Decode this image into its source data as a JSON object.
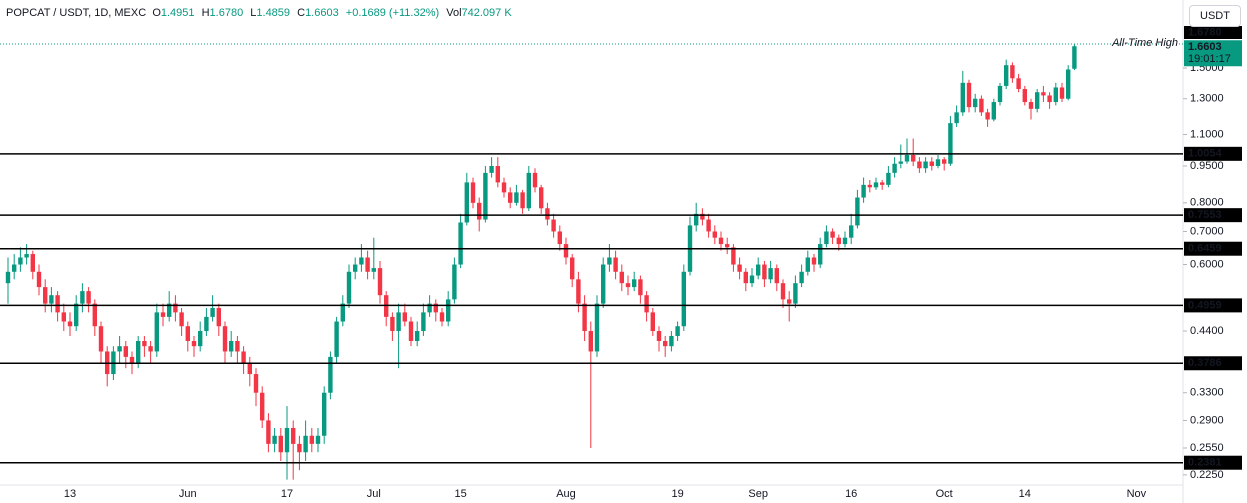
{
  "header": {
    "symbol": "POPCAT / USDT, 1D, MEXC",
    "o_label": "O",
    "o": "1.4951",
    "h_label": "H",
    "h": "1.6780",
    "l_label": "L",
    "l": "1.4859",
    "c_label": "C",
    "c": "1.6603",
    "change": "+0.1689 (+11.32%)",
    "vol_label": "Vol",
    "vol": "742.097 K",
    "currency": "USDT"
  },
  "chart_data": {
    "type": "candlestick",
    "log": true,
    "grid": false,
    "up_color": "#089981",
    "down_color": "#f23645",
    "ylim": [
      0.2146,
      2.06
    ],
    "yticks": [
      {
        "value": 1.5,
        "label": "1.5000"
      },
      {
        "value": 1.3,
        "label": "1.3000"
      },
      {
        "value": 1.1,
        "label": "1.1000"
      },
      {
        "value": 0.95,
        "label": "0.9500"
      },
      {
        "value": 0.8,
        "label": "0.8000"
      },
      {
        "value": 0.7,
        "label": "0.7000"
      },
      {
        "value": 0.6,
        "label": "0.6000"
      },
      {
        "value": 0.44,
        "label": "0.4400"
      },
      {
        "value": 0.33,
        "label": "0.3300"
      },
      {
        "value": 0.29,
        "label": "0.2900"
      },
      {
        "value": 0.255,
        "label": "0.2550"
      },
      {
        "value": 0.225,
        "label": "0.2250"
      }
    ],
    "levels": [
      1.0054,
      0.7553,
      0.6459,
      0.4959,
      0.3786,
      0.2381
    ],
    "ath": {
      "value": 1.678,
      "label": "1.6780"
    },
    "ath_text": "All-Time High",
    "last_price": 1.6603,
    "countdown": "19:01:17",
    "categories": [
      null,
      null,
      null,
      null,
      null,
      null,
      null,
      null,
      null,
      null,
      "13",
      null,
      null,
      null,
      null,
      null,
      null,
      null,
      null,
      null,
      null,
      null,
      null,
      null,
      null,
      null,
      null,
      null,
      null,
      "Jun",
      null,
      null,
      null,
      null,
      null,
      null,
      null,
      null,
      null,
      null,
      null,
      null,
      null,
      null,
      null,
      "17",
      null,
      null,
      null,
      null,
      null,
      null,
      null,
      null,
      null,
      null,
      null,
      null,
      null,
      "Jul",
      null,
      null,
      null,
      null,
      null,
      null,
      null,
      null,
      null,
      null,
      null,
      null,
      null,
      "15",
      null,
      null,
      null,
      null,
      null,
      null,
      null,
      null,
      null,
      null,
      null,
      null,
      null,
      null,
      null,
      null,
      "Aug",
      null,
      null,
      null,
      null,
      null,
      null,
      null,
      null,
      null,
      null,
      null,
      null,
      null,
      null,
      null,
      null,
      null,
      "19",
      null,
      null,
      null,
      null,
      null,
      null,
      null,
      null,
      null,
      null,
      null,
      null,
      "Sep",
      null,
      null,
      null,
      null,
      null,
      null,
      null,
      null,
      null,
      null,
      null,
      null,
      null,
      null,
      "16",
      null,
      null,
      null,
      null,
      null,
      null,
      null,
      null,
      null,
      null,
      null,
      null,
      null,
      null,
      "Oct",
      null,
      null,
      null,
      null,
      null,
      null,
      null,
      null,
      null,
      null,
      null,
      null,
      "14",
      null,
      null,
      null,
      null,
      null,
      null,
      null,
      null,
      null,
      null,
      null,
      null,
      null,
      null,
      null,
      null,
      null,
      "Nov"
    ],
    "ohlc": [
      [
        0.55,
        0.62,
        0.5,
        0.58
      ],
      [
        0.58,
        0.63,
        0.56,
        0.6
      ],
      [
        0.6,
        0.65,
        0.58,
        0.62
      ],
      [
        0.62,
        0.66,
        0.6,
        0.63
      ],
      [
        0.63,
        0.64,
        0.56,
        0.58
      ],
      [
        0.58,
        0.6,
        0.52,
        0.54
      ],
      [
        0.54,
        0.56,
        0.48,
        0.5
      ],
      [
        0.5,
        0.54,
        0.48,
        0.52
      ],
      [
        0.52,
        0.53,
        0.46,
        0.48
      ],
      [
        0.48,
        0.5,
        0.44,
        0.46
      ],
      [
        0.46,
        0.48,
        0.43,
        0.45
      ],
      [
        0.45,
        0.52,
        0.44,
        0.5
      ],
      [
        0.5,
        0.55,
        0.48,
        0.53
      ],
      [
        0.53,
        0.54,
        0.48,
        0.5
      ],
      [
        0.5,
        0.51,
        0.43,
        0.45
      ],
      [
        0.45,
        0.46,
        0.38,
        0.4
      ],
      [
        0.4,
        0.41,
        0.34,
        0.36
      ],
      [
        0.36,
        0.41,
        0.35,
        0.4
      ],
      [
        0.4,
        0.43,
        0.38,
        0.41
      ],
      [
        0.41,
        0.42,
        0.37,
        0.39
      ],
      [
        0.39,
        0.4,
        0.36,
        0.38
      ],
      [
        0.38,
        0.43,
        0.37,
        0.42
      ],
      [
        0.42,
        0.43,
        0.39,
        0.41
      ],
      [
        0.41,
        0.42,
        0.38,
        0.4
      ],
      [
        0.4,
        0.5,
        0.39,
        0.48
      ],
      [
        0.48,
        0.5,
        0.45,
        0.47
      ],
      [
        0.47,
        0.53,
        0.46,
        0.5
      ],
      [
        0.5,
        0.52,
        0.46,
        0.48
      ],
      [
        0.48,
        0.49,
        0.43,
        0.45
      ],
      [
        0.45,
        0.46,
        0.4,
        0.42
      ],
      [
        0.42,
        0.43,
        0.39,
        0.41
      ],
      [
        0.41,
        0.46,
        0.4,
        0.44
      ],
      [
        0.44,
        0.49,
        0.43,
        0.47
      ],
      [
        0.47,
        0.52,
        0.46,
        0.49
      ],
      [
        0.49,
        0.5,
        0.43,
        0.45
      ],
      [
        0.45,
        0.46,
        0.38,
        0.4
      ],
      [
        0.4,
        0.44,
        0.39,
        0.42
      ],
      [
        0.42,
        0.43,
        0.38,
        0.4
      ],
      [
        0.4,
        0.41,
        0.36,
        0.38
      ],
      [
        0.38,
        0.39,
        0.34,
        0.36
      ],
      [
        0.36,
        0.37,
        0.31,
        0.33
      ],
      [
        0.33,
        0.34,
        0.28,
        0.29
      ],
      [
        0.29,
        0.3,
        0.25,
        0.26
      ],
      [
        0.26,
        0.28,
        0.25,
        0.27
      ],
      [
        0.27,
        0.28,
        0.24,
        0.25
      ],
      [
        0.25,
        0.31,
        0.22,
        0.28
      ],
      [
        0.28,
        0.29,
        0.22,
        0.26
      ],
      [
        0.26,
        0.27,
        0.23,
        0.25
      ],
      [
        0.25,
        0.29,
        0.24,
        0.27
      ],
      [
        0.27,
        0.28,
        0.25,
        0.26
      ],
      [
        0.26,
        0.28,
        0.25,
        0.27
      ],
      [
        0.27,
        0.34,
        0.26,
        0.33
      ],
      [
        0.33,
        0.4,
        0.32,
        0.39
      ],
      [
        0.39,
        0.47,
        0.38,
        0.46
      ],
      [
        0.46,
        0.52,
        0.45,
        0.5
      ],
      [
        0.5,
        0.6,
        0.49,
        0.58
      ],
      [
        0.58,
        0.62,
        0.56,
        0.6
      ],
      [
        0.6,
        0.66,
        0.58,
        0.62
      ],
      [
        0.62,
        0.64,
        0.56,
        0.58
      ],
      [
        0.58,
        0.68,
        0.56,
        0.59
      ],
      [
        0.59,
        0.61,
        0.5,
        0.52
      ],
      [
        0.52,
        0.53,
        0.45,
        0.47
      ],
      [
        0.47,
        0.48,
        0.42,
        0.44
      ],
      [
        0.44,
        0.5,
        0.37,
        0.48
      ],
      [
        0.48,
        0.5,
        0.45,
        0.46
      ],
      [
        0.46,
        0.47,
        0.41,
        0.42
      ],
      [
        0.42,
        0.46,
        0.41,
        0.44
      ],
      [
        0.44,
        0.5,
        0.43,
        0.48
      ],
      [
        0.48,
        0.52,
        0.47,
        0.5
      ],
      [
        0.5,
        0.51,
        0.46,
        0.48
      ],
      [
        0.48,
        0.49,
        0.45,
        0.46
      ],
      [
        0.46,
        0.53,
        0.45,
        0.51
      ],
      [
        0.51,
        0.62,
        0.5,
        0.6
      ],
      [
        0.6,
        0.76,
        0.59,
        0.73
      ],
      [
        0.73,
        0.92,
        0.72,
        0.88
      ],
      [
        0.88,
        0.9,
        0.78,
        0.8
      ],
      [
        0.8,
        0.82,
        0.7,
        0.74
      ],
      [
        0.74,
        0.95,
        0.73,
        0.92
      ],
      [
        0.92,
        0.99,
        0.9,
        0.95
      ],
      [
        0.95,
        0.99,
        0.86,
        0.88
      ],
      [
        0.88,
        0.9,
        0.82,
        0.84
      ],
      [
        0.84,
        0.86,
        0.78,
        0.8
      ],
      [
        0.8,
        0.87,
        0.79,
        0.84
      ],
      [
        0.84,
        0.85,
        0.76,
        0.78
      ],
      [
        0.78,
        0.95,
        0.77,
        0.92
      ],
      [
        0.92,
        0.94,
        0.84,
        0.86
      ],
      [
        0.86,
        0.87,
        0.76,
        0.78
      ],
      [
        0.78,
        0.8,
        0.72,
        0.74
      ],
      [
        0.74,
        0.76,
        0.68,
        0.7
      ],
      [
        0.7,
        0.72,
        0.64,
        0.66
      ],
      [
        0.66,
        0.68,
        0.6,
        0.62
      ],
      [
        0.62,
        0.63,
        0.54,
        0.56
      ],
      [
        0.56,
        0.58,
        0.48,
        0.5
      ],
      [
        0.5,
        0.52,
        0.42,
        0.44
      ],
      [
        0.44,
        0.46,
        0.255,
        0.4
      ],
      [
        0.4,
        0.52,
        0.39,
        0.5
      ],
      [
        0.5,
        0.62,
        0.49,
        0.6
      ],
      [
        0.6,
        0.66,
        0.58,
        0.62
      ],
      [
        0.62,
        0.64,
        0.56,
        0.58
      ],
      [
        0.58,
        0.6,
        0.53,
        0.55
      ],
      [
        0.55,
        0.57,
        0.52,
        0.54
      ],
      [
        0.54,
        0.58,
        0.53,
        0.56
      ],
      [
        0.56,
        0.57,
        0.5,
        0.52
      ],
      [
        0.52,
        0.53,
        0.46,
        0.48
      ],
      [
        0.48,
        0.49,
        0.43,
        0.44
      ],
      [
        0.44,
        0.45,
        0.4,
        0.42
      ],
      [
        0.42,
        0.43,
        0.39,
        0.41
      ],
      [
        0.41,
        0.44,
        0.4,
        0.43
      ],
      [
        0.43,
        0.46,
        0.42,
        0.45
      ],
      [
        0.45,
        0.6,
        0.44,
        0.58
      ],
      [
        0.58,
        0.75,
        0.57,
        0.72
      ],
      [
        0.72,
        0.8,
        0.7,
        0.76
      ],
      [
        0.76,
        0.78,
        0.72,
        0.74
      ],
      [
        0.74,
        0.76,
        0.68,
        0.7
      ],
      [
        0.7,
        0.72,
        0.66,
        0.68
      ],
      [
        0.68,
        0.7,
        0.64,
        0.66
      ],
      [
        0.66,
        0.68,
        0.63,
        0.65
      ],
      [
        0.65,
        0.66,
        0.58,
        0.6
      ],
      [
        0.6,
        0.62,
        0.56,
        0.58
      ],
      [
        0.58,
        0.59,
        0.53,
        0.55
      ],
      [
        0.55,
        0.59,
        0.54,
        0.57
      ],
      [
        0.57,
        0.62,
        0.56,
        0.6
      ],
      [
        0.6,
        0.61,
        0.54,
        0.56
      ],
      [
        0.56,
        0.61,
        0.55,
        0.59
      ],
      [
        0.59,
        0.6,
        0.53,
        0.55
      ],
      [
        0.55,
        0.56,
        0.49,
        0.51
      ],
      [
        0.51,
        0.53,
        0.46,
        0.5
      ],
      [
        0.5,
        0.57,
        0.49,
        0.55
      ],
      [
        0.55,
        0.6,
        0.54,
        0.58
      ],
      [
        0.58,
        0.64,
        0.57,
        0.62
      ],
      [
        0.62,
        0.63,
        0.58,
        0.6
      ],
      [
        0.6,
        0.68,
        0.59,
        0.66
      ],
      [
        0.66,
        0.72,
        0.65,
        0.7
      ],
      [
        0.7,
        0.71,
        0.66,
        0.68
      ],
      [
        0.68,
        0.69,
        0.64,
        0.66
      ],
      [
        0.66,
        0.7,
        0.65,
        0.68
      ],
      [
        0.68,
        0.76,
        0.66,
        0.72
      ],
      [
        0.72,
        0.85,
        0.71,
        0.82
      ],
      [
        0.82,
        0.9,
        0.8,
        0.87
      ],
      [
        0.87,
        0.89,
        0.84,
        0.86
      ],
      [
        0.86,
        0.9,
        0.85,
        0.88
      ],
      [
        0.88,
        0.89,
        0.85,
        0.87
      ],
      [
        0.87,
        0.95,
        0.86,
        0.92
      ],
      [
        0.92,
        0.99,
        0.9,
        0.96
      ],
      [
        0.96,
        1.05,
        0.94,
        0.97
      ],
      [
        0.97,
        1.08,
        0.96,
        1.0
      ],
      [
        1.0,
        1.08,
        0.95,
        0.97
      ],
      [
        0.97,
        0.99,
        0.92,
        0.94
      ],
      [
        0.94,
        0.99,
        0.92,
        0.97
      ],
      [
        0.97,
        0.99,
        0.93,
        0.95
      ],
      [
        0.95,
        1.0,
        0.94,
        0.98
      ],
      [
        0.98,
        0.99,
        0.93,
        0.96
      ],
      [
        0.96,
        1.2,
        0.95,
        1.16
      ],
      [
        1.16,
        1.26,
        1.14,
        1.22
      ],
      [
        1.22,
        1.48,
        1.2,
        1.4
      ],
      [
        1.4,
        1.42,
        1.22,
        1.25
      ],
      [
        1.25,
        1.33,
        1.22,
        1.3
      ],
      [
        1.3,
        1.32,
        1.2,
        1.22
      ],
      [
        1.22,
        1.24,
        1.14,
        1.18
      ],
      [
        1.18,
        1.3,
        1.17,
        1.28
      ],
      [
        1.28,
        1.4,
        1.26,
        1.38
      ],
      [
        1.38,
        1.56,
        1.36,
        1.52
      ],
      [
        1.52,
        1.54,
        1.4,
        1.43
      ],
      [
        1.43,
        1.46,
        1.34,
        1.36
      ],
      [
        1.36,
        1.38,
        1.26,
        1.28
      ],
      [
        1.28,
        1.3,
        1.18,
        1.24
      ],
      [
        1.24,
        1.36,
        1.22,
        1.34
      ],
      [
        1.34,
        1.38,
        1.28,
        1.32
      ],
      [
        1.32,
        1.34,
        1.24,
        1.28
      ],
      [
        1.28,
        1.4,
        1.26,
        1.37
      ],
      [
        1.37,
        1.4,
        1.28,
        1.3
      ],
      [
        1.3,
        1.52,
        1.29,
        1.49
      ],
      [
        1.4951,
        1.678,
        1.4859,
        1.6603
      ],
      null,
      null,
      null,
      null,
      null,
      null,
      null,
      null,
      null,
      null
    ]
  }
}
